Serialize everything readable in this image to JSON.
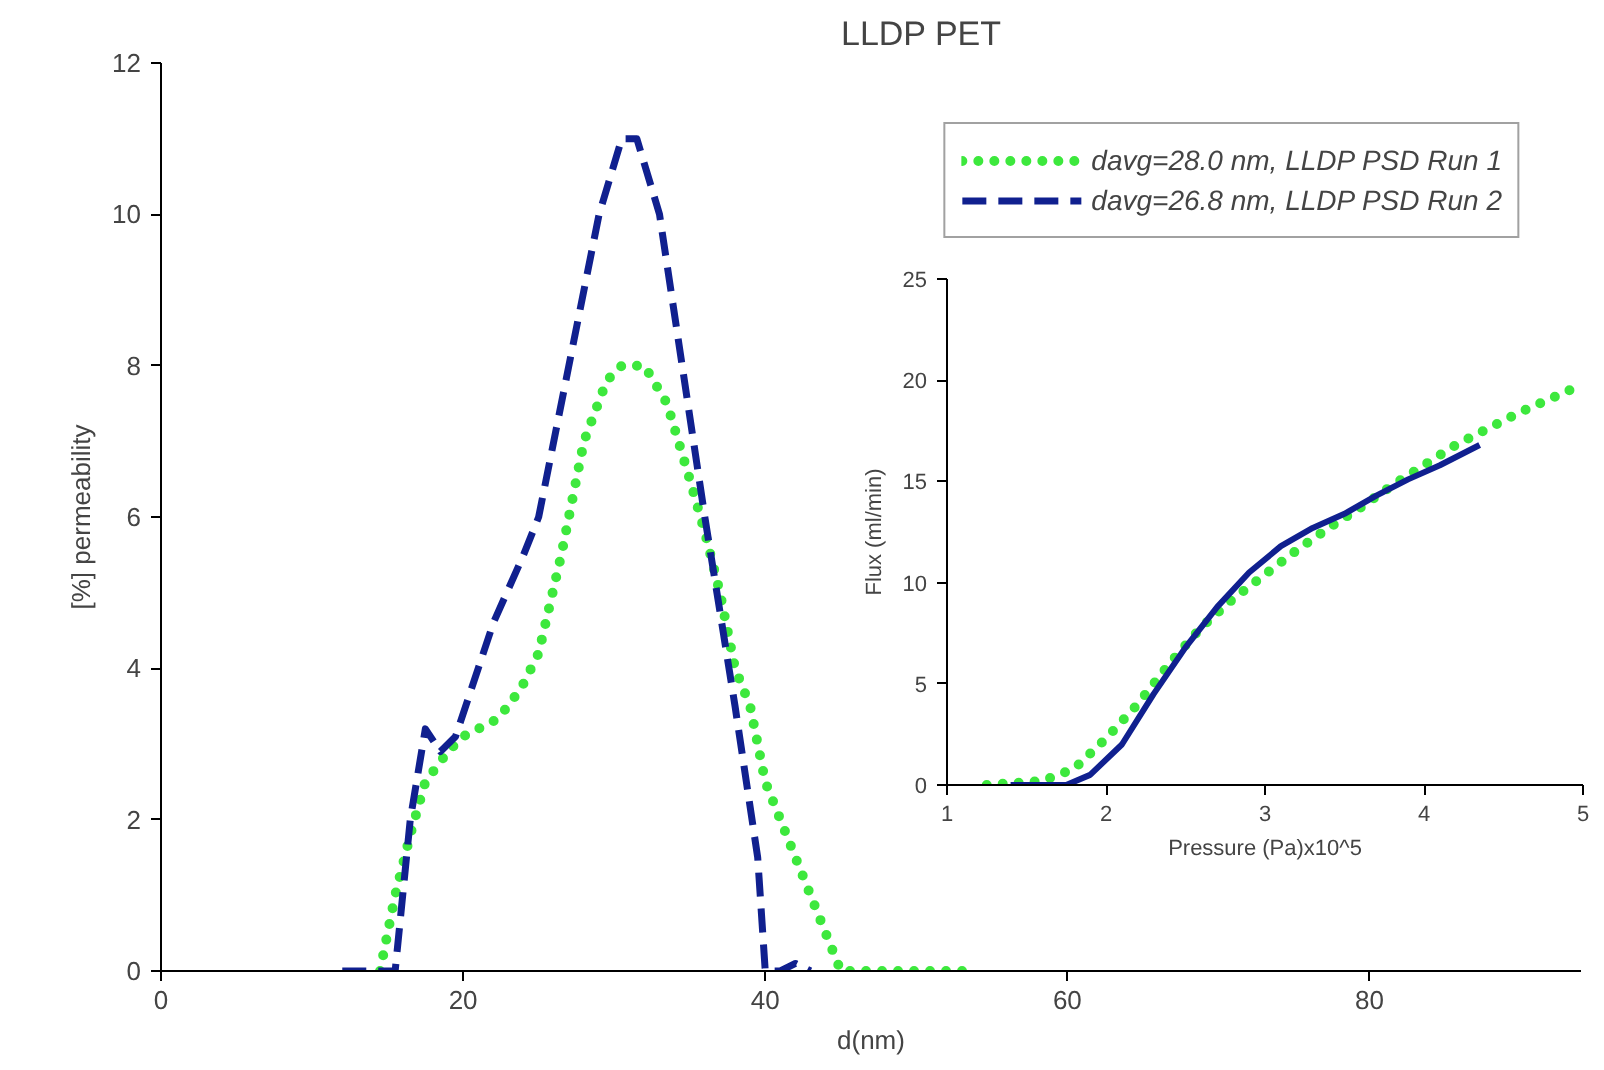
{
  "chart_data": [
    {
      "type": "line",
      "title": "LLDP PET",
      "xlabel": "d(nm)",
      "ylabel": "[%] permeability",
      "xlim": [
        0,
        94
      ],
      "xticks": [
        0,
        20,
        40,
        60,
        80
      ],
      "ylim": [
        0,
        12
      ],
      "yticks": [
        0,
        2,
        4,
        6,
        8,
        10,
        12
      ],
      "grid": false,
      "legend": "top right",
      "marker": "none",
      "series": [
        {
          "name": "davg=28.0 nm, LLDP PSD Run 1",
          "color": "#3de83d",
          "line_style": "dotted",
          "x": [
            14.5,
            15.5,
            16.5,
            17.5,
            19,
            20,
            22,
            23,
            24,
            25,
            26.5,
            28,
            29.5,
            30.5,
            32,
            33.5,
            35,
            36,
            37,
            38,
            39,
            40,
            41,
            42,
            43,
            44,
            45,
            48,
            51,
            54
          ],
          "values": [
            0,
            1,
            1.8,
            2.5,
            2.9,
            3.1,
            3.3,
            3.5,
            3.8,
            4.2,
            5.5,
            7,
            7.8,
            8,
            8,
            7.5,
            6.5,
            5.8,
            5,
            4,
            3.5,
            2.5,
            2,
            1.5,
            1,
            0.5,
            0,
            0,
            0,
            0
          ]
        },
        {
          "name": "davg=26.8 nm, LLDP PSD Run 2",
          "color": "#10208f",
          "line_style": "dashed",
          "x": [
            12,
            14,
            15.5,
            16.5,
            17.5,
            18.5,
            19.5,
            21,
            22,
            24,
            25,
            27,
            29,
            30.5,
            31.5,
            33,
            34.5,
            36,
            38,
            39.5,
            40,
            41,
            42,
            43
          ],
          "values": [
            0,
            0,
            0,
            2,
            3.2,
            2.9,
            3.1,
            4,
            4.6,
            5.5,
            6,
            8,
            10,
            11,
            11,
            10,
            8,
            6,
            3.5,
            1.5,
            0,
            0,
            0.1,
            0
          ]
        }
      ]
    },
    {
      "type": "line",
      "xlabel": "Pressure (Pa)x10^5",
      "ylabel": "Flux (ml/min)",
      "xlim": [
        1,
        5
      ],
      "xticks": [
        1,
        2,
        3,
        4,
        5
      ],
      "ylim": [
        0,
        25
      ],
      "yticks": [
        0,
        5,
        10,
        15,
        20,
        25
      ],
      "grid": false,
      "marker": "none",
      "series": [
        {
          "color": "#3de83d",
          "line_style": "dotted",
          "x": [
            1.25,
            1.6,
            1.8,
            2.0,
            2.2,
            2.4,
            2.6,
            2.8,
            3.0,
            3.2,
            3.4,
            3.6,
            3.8,
            4.0,
            4.2,
            4.4,
            4.6,
            4.8,
            5.0
          ],
          "values": [
            0,
            0.2,
            0.8,
            2.3,
            4,
            6,
            7.8,
            9.2,
            10.4,
            11.6,
            12.7,
            13.7,
            14.8,
            15.8,
            16.8,
            17.6,
            18.4,
            19.1,
            19.8
          ]
        },
        {
          "color": "#10208f",
          "line_style": "solid",
          "x": [
            1.4,
            1.75,
            1.9,
            2.1,
            2.3,
            2.5,
            2.7,
            2.9,
            3.1,
            3.3,
            3.5,
            3.7,
            3.9,
            4.1,
            4.35
          ],
          "values": [
            0,
            0,
            0.5,
            2,
            4.5,
            6.8,
            8.8,
            10.5,
            11.8,
            12.7,
            13.4,
            14.3,
            15.1,
            15.8,
            16.8
          ]
        }
      ]
    }
  ]
}
